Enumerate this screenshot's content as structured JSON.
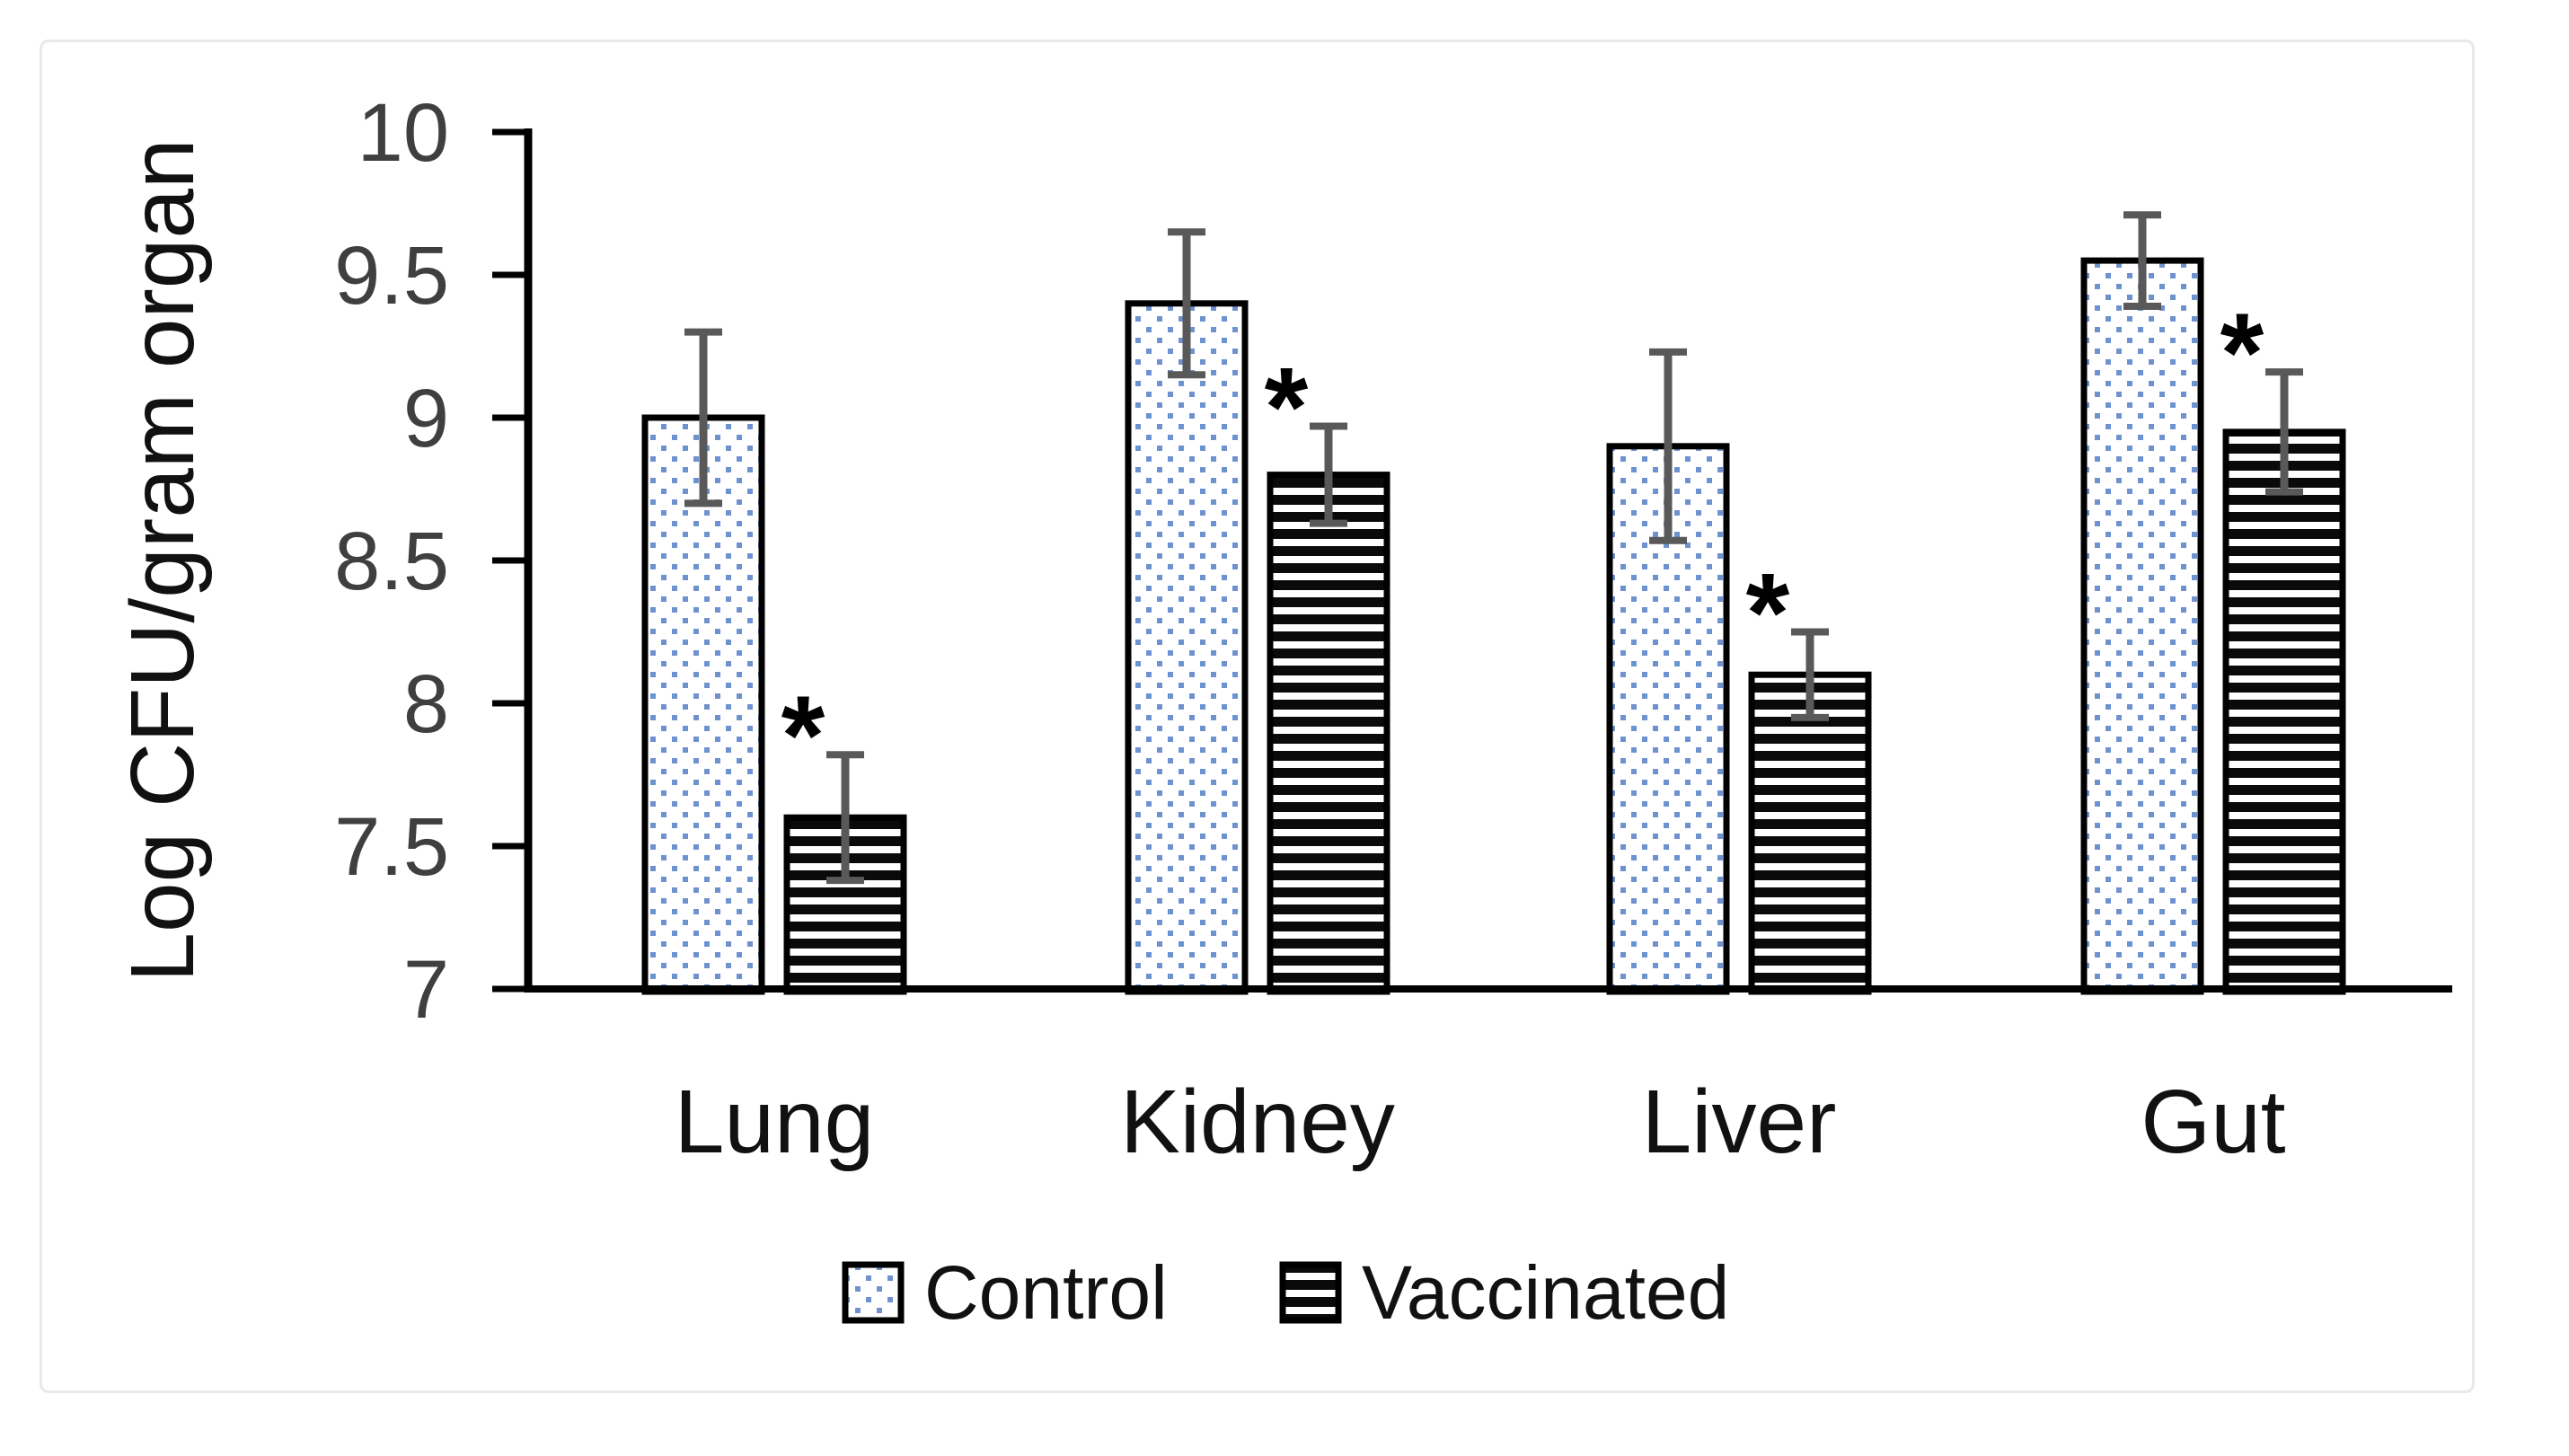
{
  "figure": {
    "background": "#ffffff",
    "frame_border_color": "#e9e9eb"
  },
  "chart_data": {
    "type": "bar",
    "title": "",
    "xlabel": "",
    "ylabel": "Log CFU/gram organ",
    "categories": [
      "Lung",
      "Kidney",
      "Liver",
      "Gut"
    ],
    "series": [
      {
        "name": "Control",
        "pattern": "blue-dots",
        "values": [
          9.0,
          9.4,
          8.9,
          9.55
        ],
        "errors": [
          0.3,
          0.25,
          0.33,
          0.16
        ],
        "significant": [
          false,
          false,
          false,
          false
        ]
      },
      {
        "name": "Vaccinated",
        "pattern": "black-horizontal-stripes",
        "values": [
          7.6,
          8.8,
          8.1,
          8.95
        ],
        "errors": [
          0.22,
          0.17,
          0.15,
          0.21
        ],
        "significant": [
          true,
          true,
          true,
          true
        ]
      }
    ],
    "ylim": [
      7,
      10
    ],
    "yticks": [
      7,
      7.5,
      8,
      8.5,
      9,
      9.5,
      10
    ],
    "ytick_labels": [
      "7",
      "7.5",
      "8",
      "8.5",
      "9",
      "9.5",
      "10"
    ],
    "significance_marker": "*",
    "grid": false,
    "legend": {
      "position": "bottom-center",
      "items": [
        "Control",
        "Vaccinated"
      ]
    },
    "colors": {
      "axis": "#000000",
      "tick_label": "#3f3f3f",
      "category_label": "#111111",
      "bar_outline": "#000000",
      "error_bar": "#595959",
      "dot_fill": "#6e92cf",
      "stripe_fill": "#0a0a0a",
      "legend_text": "#111111",
      "marker_color": "#000000"
    }
  }
}
